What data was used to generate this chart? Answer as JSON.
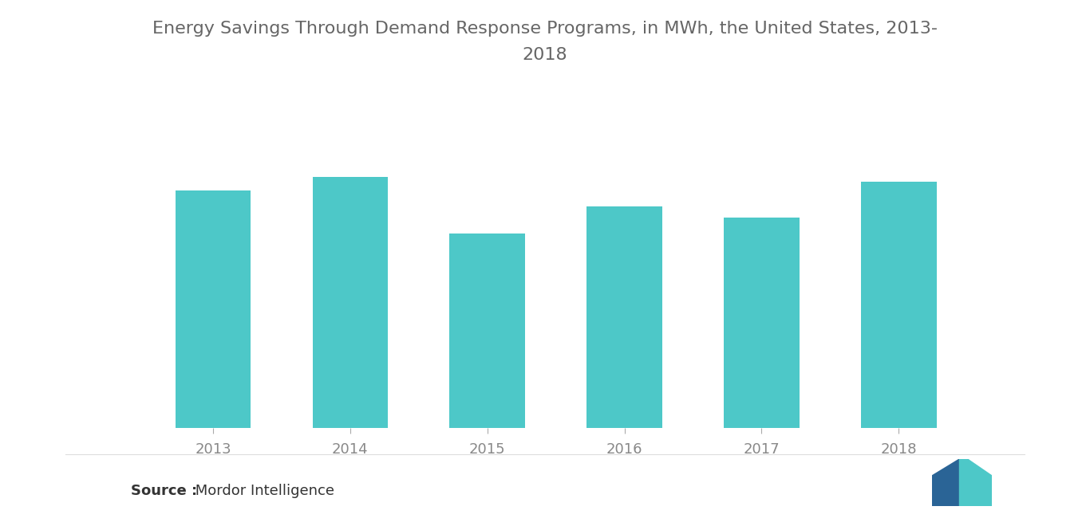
{
  "title_line1": "Energy Savings Through Demand Response Programs, in MWh, the United States, 2013-",
  "title_line2": "2018",
  "categories": [
    "2013",
    "2014",
    "2015",
    "2016",
    "2017",
    "2018"
  ],
  "values": [
    0.88,
    0.93,
    0.72,
    0.82,
    0.78,
    0.91
  ],
  "bar_color": "#4DC8C8",
  "background_color": "#ffffff",
  "source_bold": "Source :",
  "source_text": " Mordor Intelligence",
  "title_color": "#666666",
  "tick_color": "#888888",
  "title_fontsize": 16,
  "tick_fontsize": 13,
  "source_fontsize": 13,
  "logo_dark_blue": "#2A6496",
  "logo_teal": "#4DC8C8"
}
